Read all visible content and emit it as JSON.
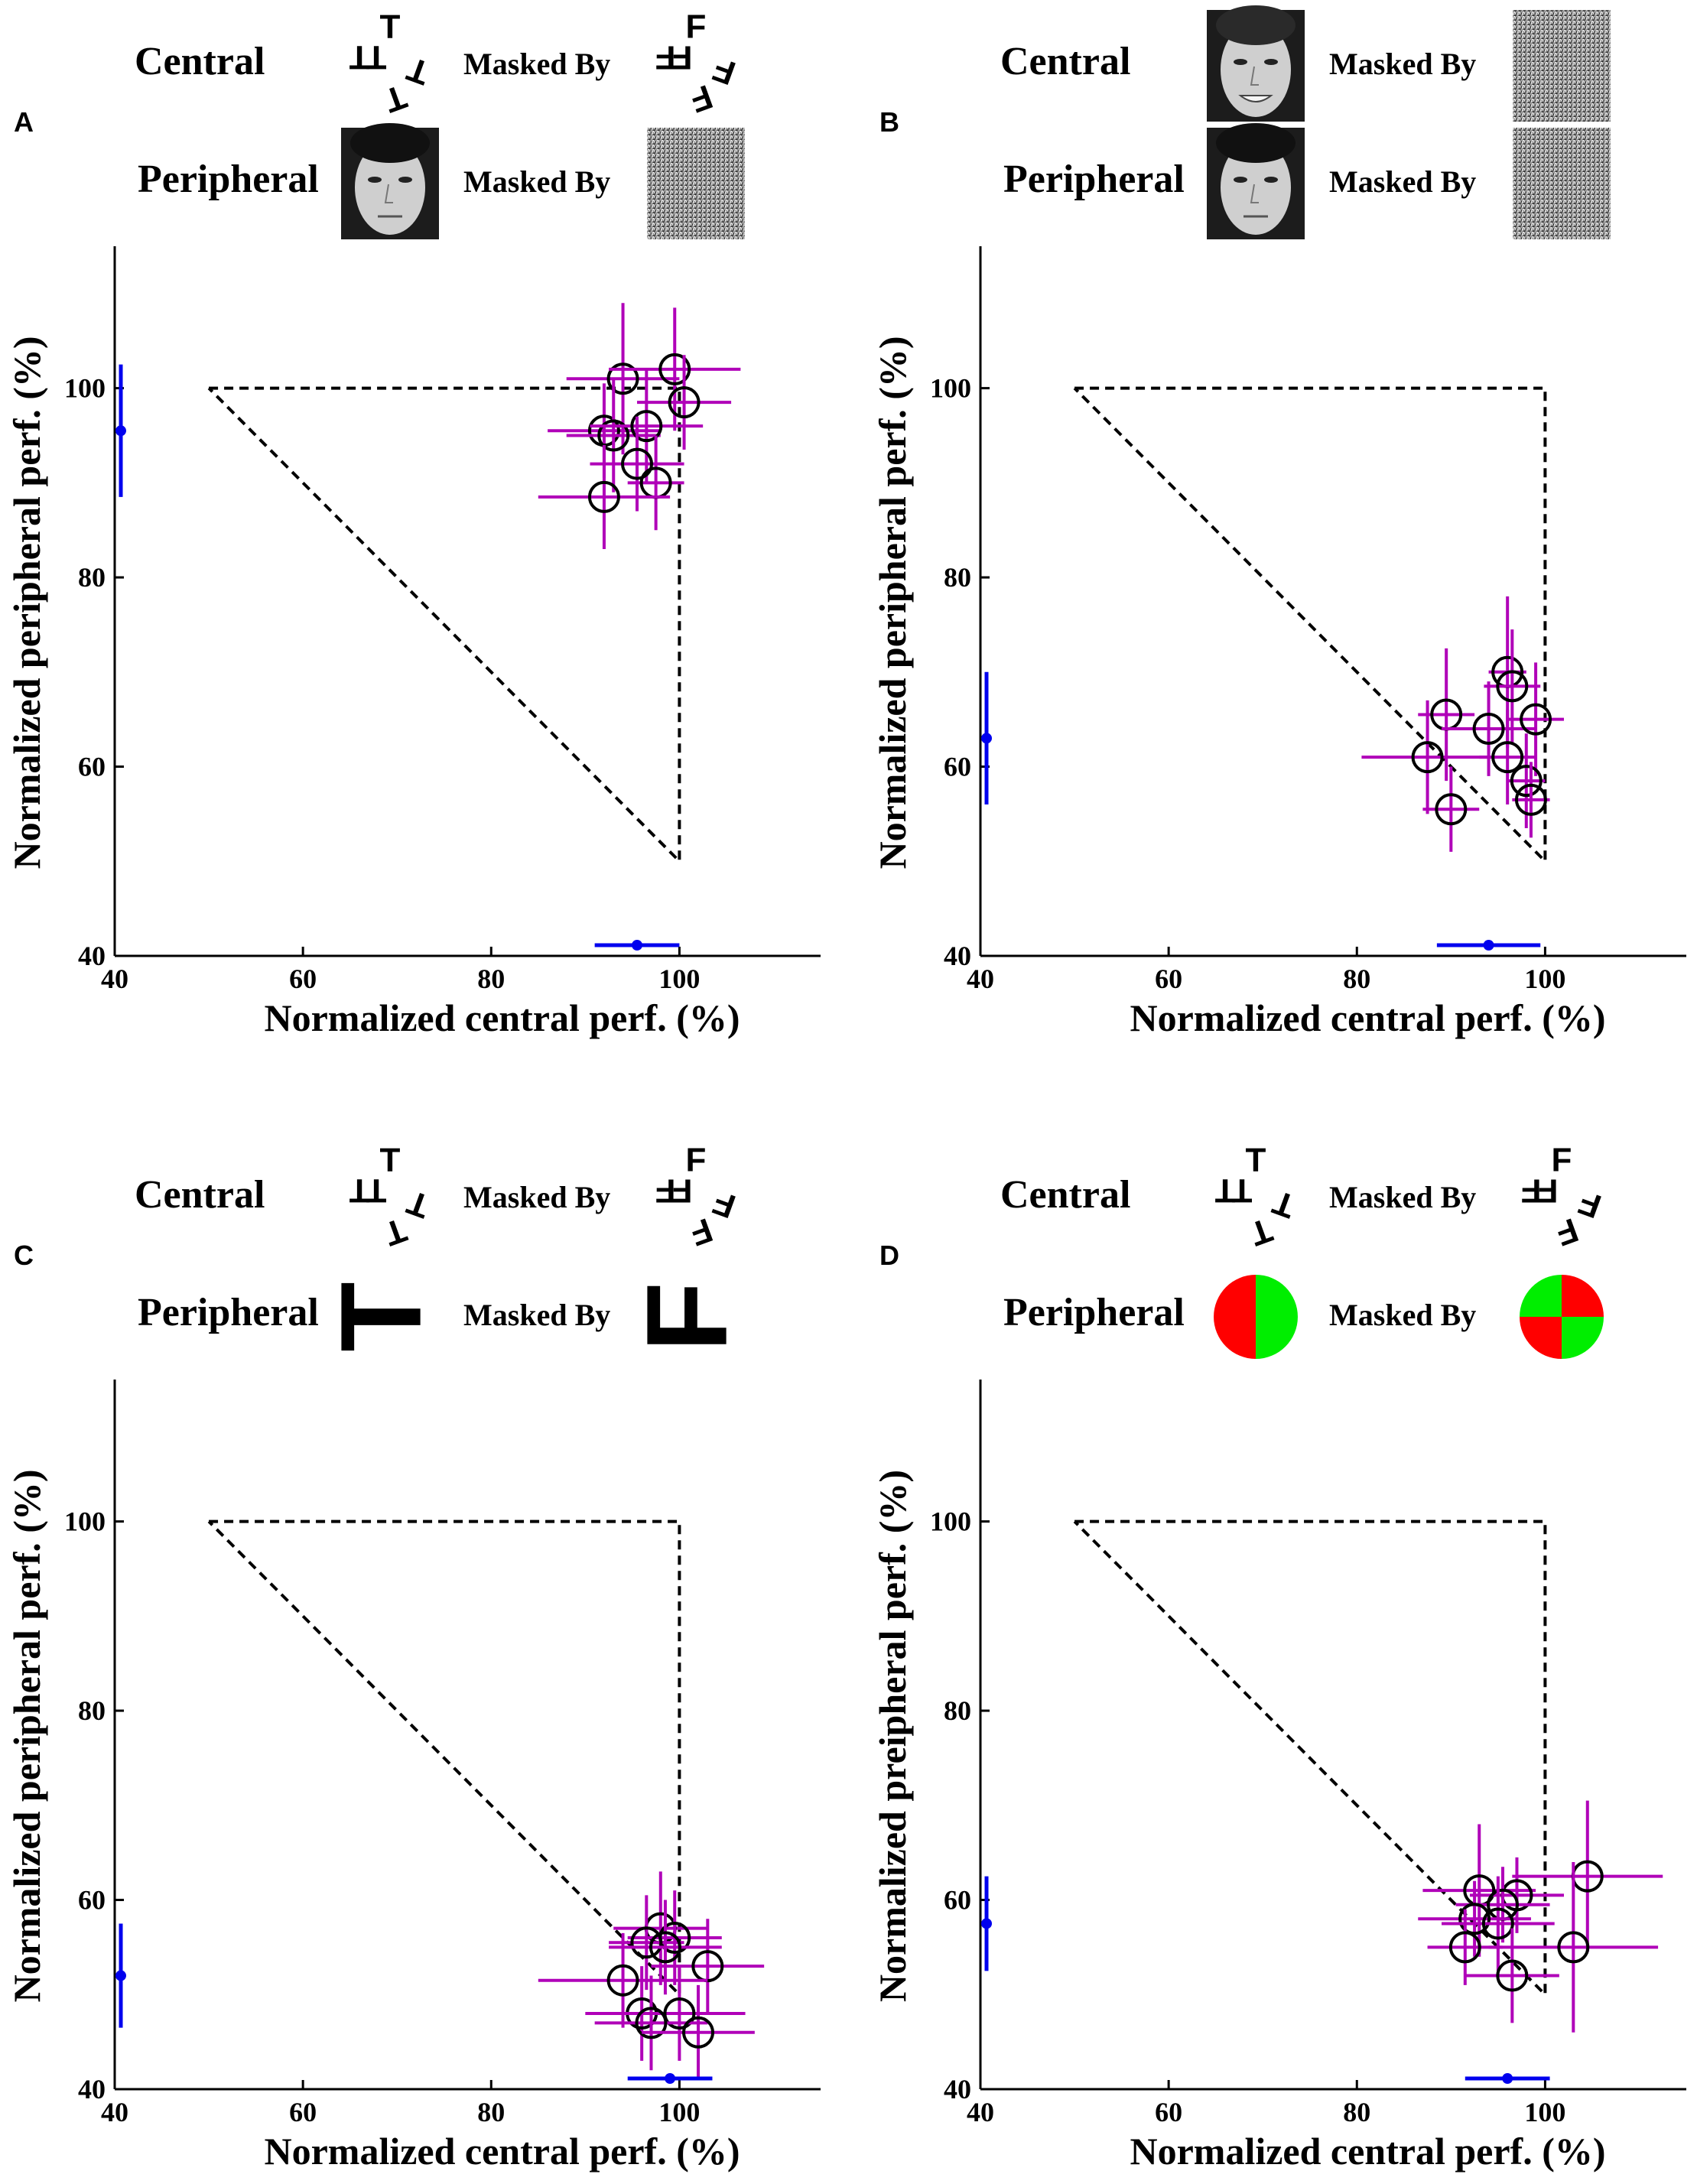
{
  "chart_data": [
    {
      "panel": "A",
      "type": "scatter",
      "stimuli": {
        "central_label": "Central",
        "central_stimulus": "T-letters",
        "central_mask": "F-letters",
        "peripheral_label": "Peripheral",
        "peripheral_stimulus": "male-face",
        "peripheral_mask": "noise",
        "masked_by_label": "Masked By"
      },
      "xlabel": "Normalized central perf. (%)",
      "ylabel": "Normalized peripheral perf. (%)",
      "xlim": [
        40,
        115
      ],
      "ylim": [
        40,
        115
      ],
      "xticks": [
        "40",
        "60",
        "80",
        "100"
      ],
      "yticks": [
        "40",
        "60",
        "80",
        "100"
      ],
      "grid": false,
      "bounds": [
        [
          50,
          100
        ],
        [
          100,
          100
        ],
        [
          100,
          50
        ],
        [
          50,
          100
        ]
      ],
      "points": [
        {
          "x": 94,
          "y": 101,
          "xerr": 6,
          "yerr": 8
        },
        {
          "x": 99.5,
          "y": 102,
          "xerr": 7,
          "yerr": 6.5
        },
        {
          "x": 100.5,
          "y": 98.5,
          "xerr": 5,
          "yerr": 5
        },
        {
          "x": 92,
          "y": 95.5,
          "xerr": 6,
          "yerr": 5
        },
        {
          "x": 93,
          "y": 95,
          "xerr": 5,
          "yerr": 6
        },
        {
          "x": 96.5,
          "y": 96,
          "xerr": 6,
          "yerr": 6
        },
        {
          "x": 95.5,
          "y": 92,
          "xerr": 5,
          "yerr": 5
        },
        {
          "x": 97.5,
          "y": 90,
          "xerr": 3,
          "yerr": 5
        },
        {
          "x": 92,
          "y": 88.5,
          "xerr": 7,
          "yerr": 5.5
        }
      ],
      "mean_x": {
        "value": 95.5,
        "err": 4.5
      },
      "mean_y": {
        "value": 95.5,
        "err": 7
      }
    },
    {
      "panel": "B",
      "type": "scatter",
      "stimuli": {
        "central_label": "Central",
        "central_stimulus": "female-face",
        "central_mask": "noise",
        "peripheral_label": "Peripheral",
        "peripheral_stimulus": "male-face",
        "peripheral_mask": "noise",
        "masked_by_label": "Masked By"
      },
      "xlabel": "Normalized central perf. (%)",
      "ylabel": "Normalized peripheral perf. (%)",
      "xlim": [
        40,
        115
      ],
      "ylim": [
        40,
        115
      ],
      "xticks": [
        "40",
        "60",
        "80",
        "100"
      ],
      "yticks": [
        "40",
        "60",
        "80",
        "100"
      ],
      "grid": false,
      "bounds": [
        [
          50,
          100
        ],
        [
          100,
          100
        ],
        [
          100,
          50
        ],
        [
          50,
          100
        ]
      ],
      "points": [
        {
          "x": 96,
          "y": 70,
          "xerr": 2,
          "yerr": 8
        },
        {
          "x": 96.5,
          "y": 68.5,
          "xerr": 3,
          "yerr": 6
        },
        {
          "x": 89.5,
          "y": 65.5,
          "xerr": 3,
          "yerr": 7
        },
        {
          "x": 94,
          "y": 64,
          "xerr": 5,
          "yerr": 5
        },
        {
          "x": 99,
          "y": 65,
          "xerr": 3,
          "yerr": 6
        },
        {
          "x": 87.5,
          "y": 61,
          "xerr": 7,
          "yerr": 6
        },
        {
          "x": 96,
          "y": 61,
          "xerr": 3,
          "yerr": 5
        },
        {
          "x": 98,
          "y": 58.5,
          "xerr": 2,
          "yerr": 5
        },
        {
          "x": 98.5,
          "y": 56.5,
          "xerr": 2,
          "yerr": 4
        },
        {
          "x": 90,
          "y": 55.5,
          "xerr": 3,
          "yerr": 4.5
        }
      ],
      "mean_x": {
        "value": 94,
        "err": 5.5
      },
      "mean_y": {
        "value": 63,
        "err": 7
      }
    },
    {
      "panel": "C",
      "type": "scatter",
      "stimuli": {
        "central_label": "Central",
        "central_stimulus": "T-letters",
        "central_mask": "F-letters",
        "peripheral_label": "Peripheral",
        "peripheral_stimulus": "large-T",
        "peripheral_mask": "large-F",
        "masked_by_label": "Masked By"
      },
      "xlabel": "Normalized central perf. (%)",
      "ylabel": "Normalized peripheral perf. (%)",
      "xlim": [
        40,
        115
      ],
      "ylim": [
        40,
        115
      ],
      "xticks": [
        "40",
        "60",
        "80",
        "100"
      ],
      "yticks": [
        "40",
        "60",
        "80",
        "100"
      ],
      "grid": false,
      "bounds": [
        [
          50,
          100
        ],
        [
          100,
          100
        ],
        [
          100,
          50
        ],
        [
          50,
          100
        ]
      ],
      "points": [
        {
          "x": 98,
          "y": 57,
          "xerr": 5,
          "yerr": 6
        },
        {
          "x": 99.5,
          "y": 56,
          "xerr": 5,
          "yerr": 5
        },
        {
          "x": 96.5,
          "y": 55.5,
          "xerr": 4,
          "yerr": 5
        },
        {
          "x": 98.5,
          "y": 55,
          "xerr": 6,
          "yerr": 5
        },
        {
          "x": 103,
          "y": 53,
          "xerr": 6,
          "yerr": 5
        },
        {
          "x": 94,
          "y": 51.5,
          "xerr": 9,
          "yerr": 5
        },
        {
          "x": 96,
          "y": 48,
          "xerr": 6,
          "yerr": 5
        },
        {
          "x": 100,
          "y": 48,
          "xerr": 7,
          "yerr": 5
        },
        {
          "x": 97,
          "y": 47,
          "xerr": 6,
          "yerr": 5
        },
        {
          "x": 102,
          "y": 46,
          "xerr": 6,
          "yerr": 5
        }
      ],
      "mean_x": {
        "value": 99,
        "err": 4.5
      },
      "mean_y": {
        "value": 52,
        "err": 5.5
      }
    },
    {
      "panel": "D",
      "type": "scatter",
      "stimuli": {
        "central_label": "Central",
        "central_stimulus": "T-letters",
        "central_mask": "F-letters",
        "peripheral_label": "Peripheral",
        "peripheral_stimulus": "bisected-disk",
        "peripheral_mask": "quartered-disk",
        "masked_by_label": "Masked By"
      },
      "xlabel": "Normalized central perf. (%)",
      "ylabel": "Normalized preipheral perf. (%)",
      "xlim": [
        40,
        115
      ],
      "ylim": [
        40,
        115
      ],
      "xticks": [
        "40",
        "60",
        "80",
        "100"
      ],
      "yticks": [
        "40",
        "60",
        "80",
        "100"
      ],
      "grid": false,
      "bounds": [
        [
          50,
          100
        ],
        [
          100,
          100
        ],
        [
          100,
          50
        ],
        [
          50,
          100
        ]
      ],
      "points": [
        {
          "x": 104.5,
          "y": 62.5,
          "xerr": 8,
          "yerr": 8
        },
        {
          "x": 93,
          "y": 61,
          "xerr": 6,
          "yerr": 7
        },
        {
          "x": 97,
          "y": 60.5,
          "xerr": 5,
          "yerr": 4
        },
        {
          "x": 95.5,
          "y": 59.5,
          "xerr": 5,
          "yerr": 4
        },
        {
          "x": 92.5,
          "y": 58,
          "xerr": 6,
          "yerr": 4
        },
        {
          "x": 95,
          "y": 57.5,
          "xerr": 6,
          "yerr": 5
        },
        {
          "x": 91.5,
          "y": 55,
          "xerr": 4,
          "yerr": 4
        },
        {
          "x": 103,
          "y": 55,
          "xerr": 9,
          "yerr": 9
        },
        {
          "x": 96.5,
          "y": 52,
          "xerr": 5,
          "yerr": 5
        }
      ],
      "mean_x": {
        "value": 96,
        "err": 4.5
      },
      "mean_y": {
        "value": 57.5,
        "err": 5
      }
    }
  ]
}
